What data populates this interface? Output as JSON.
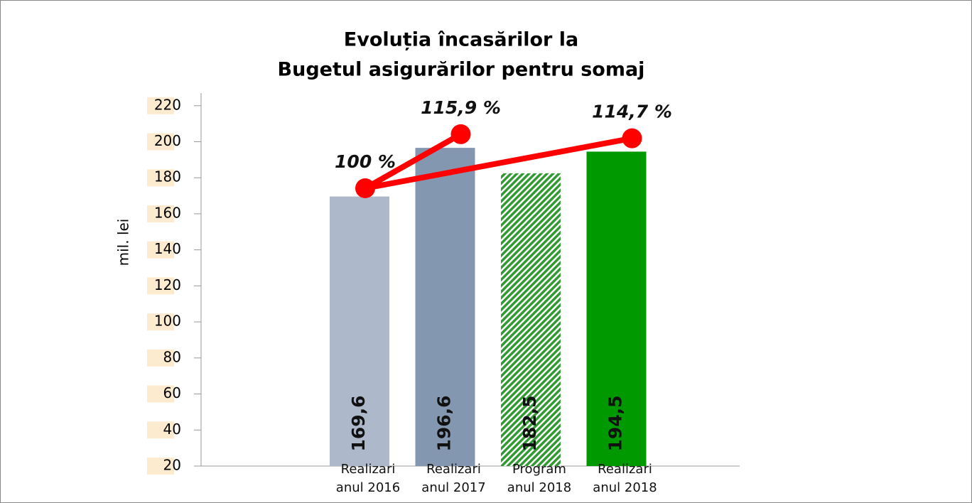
{
  "chart_data": {
    "type": "bar",
    "title": [
      "Evoluția încasărilor la",
      "Bugetul asigurărilor pentru somaj"
    ],
    "y_label": "mil. lei",
    "categories": [
      "Realizari anul 2016",
      "Realizari anul 2017",
      "Program anul 2018",
      "Realizari anul 2018"
    ],
    "values": [
      169.6,
      196.6,
      182.5,
      194.5
    ],
    "value_labels": [
      "169,6",
      "196,6",
      "182,5",
      "194,5"
    ],
    "colors": [
      "#adb9ca",
      "#8497b0",
      "#339933",
      "#009900"
    ],
    "hatched": [
      false,
      false,
      true,
      false
    ],
    "ylim": [
      20,
      227
    ],
    "yticks": [
      20,
      40,
      60,
      80,
      100,
      120,
      140,
      160,
      180,
      200,
      220
    ],
    "y2lim": [
      18.3,
      128
    ],
    "series": [
      {
        "type": "line",
        "axis": "y2",
        "color": "#ff0000",
        "values": [
          100,
          115.9,
          null,
          114.7
        ],
        "value_labels": [
          "100 %",
          "115,9 %",
          null,
          "114,7 %"
        ]
      }
    ]
  }
}
